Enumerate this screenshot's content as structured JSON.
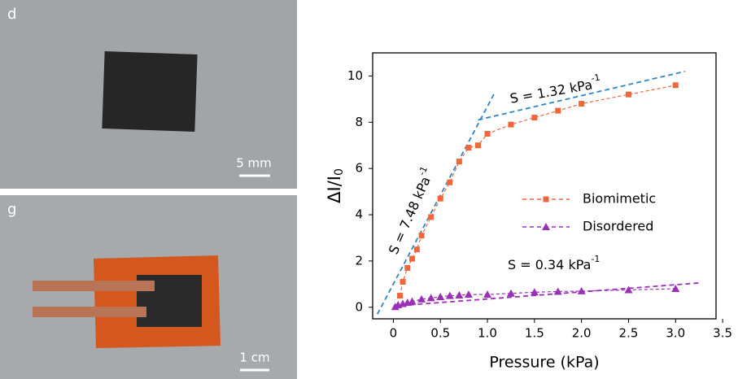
{
  "photos": [
    {
      "label": "d",
      "scale": "5 mm"
    },
    {
      "label": "g",
      "scale": "1 cm"
    }
  ],
  "chart_data": {
    "type": "scatter",
    "x_label": "Pressure (kPa)",
    "y_label": {
      "text": "ΔI/I",
      "sub": "0"
    },
    "xlim": [
      -0.22,
      3.43
    ],
    "ylim": [
      -0.5,
      11
    ],
    "xticks": [
      0,
      0.5,
      {
        "value": 1,
        "label": "1.0"
      },
      1.5,
      {
        "value": 2,
        "label": "2.0"
      },
      2.5,
      {
        "value": 3,
        "label": "3.0"
      },
      3.5
    ],
    "yticks": [
      0,
      2,
      4,
      6,
      8,
      10
    ],
    "series": [
      {
        "name": "Biomimetic",
        "color": "#f0663a",
        "marker": "square",
        "x": [
          0.07,
          0.1,
          0.15,
          0.2,
          0.25,
          0.3,
          0.4,
          0.5,
          0.6,
          0.7,
          0.8,
          0.9,
          1.0,
          1.25,
          1.5,
          1.75,
          2.0,
          2.5,
          3.0
        ],
        "values": [
          0.5,
          1.1,
          1.7,
          2.1,
          2.5,
          3.1,
          3.9,
          4.7,
          5.4,
          6.3,
          6.9,
          7.0,
          7.5,
          7.9,
          8.2,
          8.5,
          8.8,
          9.2,
          9.6
        ]
      },
      {
        "name": "Disordered",
        "color": "#9b30b8",
        "marker": "triangle",
        "x": [
          0.02,
          0.05,
          0.1,
          0.15,
          0.2,
          0.3,
          0.4,
          0.5,
          0.6,
          0.7,
          0.8,
          1.0,
          1.25,
          1.5,
          1.75,
          2.0,
          2.5,
          3.0
        ],
        "values": [
          0.02,
          0.1,
          0.15,
          0.2,
          0.25,
          0.35,
          0.4,
          0.45,
          0.5,
          0.52,
          0.55,
          0.55,
          0.6,
          0.65,
          0.68,
          0.7,
          0.75,
          0.8
        ]
      }
    ],
    "fits": [
      {
        "color": "#2e86c8",
        "x": [
          -0.17,
          1.08
        ],
        "values": [
          -0.3,
          9.3
        ]
      },
      {
        "color": "#2e86c8",
        "x": [
          0.9,
          3.1
        ],
        "values": [
          8.1,
          10.2
        ]
      },
      {
        "color": "#9b30b8",
        "x": [
          0.0,
          3.25
        ],
        "values": [
          0.05,
          1.05
        ]
      }
    ],
    "annotations": [
      {
        "text": "S = 7.48 kPa",
        "sup": "-1"
      },
      {
        "text": "S = 1.32 kPa",
        "sup": "-1"
      },
      {
        "text": "S = 0.34 kPa",
        "sup": "-1"
      }
    ]
  }
}
